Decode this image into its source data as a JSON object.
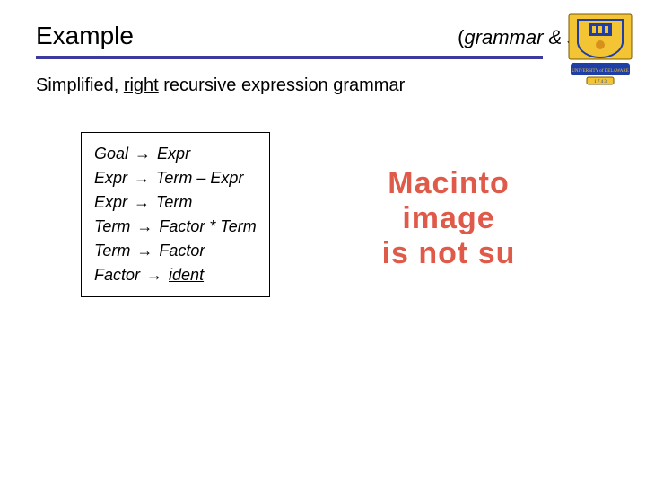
{
  "header": {
    "title": "Example",
    "right_label_inner": "grammar & sets"
  },
  "lead": {
    "pre": "Simplified, ",
    "underlined": "right",
    "post": " recursive expression grammar"
  },
  "grammar": {
    "rows": [
      {
        "lhs": "Goal",
        "rhs": "Expr",
        "op": ""
      },
      {
        "lhs": "Expr",
        "rhs": "Term – Expr",
        "op": ""
      },
      {
        "lhs": "Expr",
        "rhs": "Term",
        "op": ""
      },
      {
        "lhs": "Term",
        "rhs": "Factor * Term",
        "op": ""
      },
      {
        "lhs": "Term",
        "rhs": "Factor",
        "op": ""
      },
      {
        "lhs": "Factor",
        "rhs": "ident",
        "op": "",
        "rhs_underline": true
      }
    ],
    "arrow": "→"
  },
  "broken_image": {
    "lines": [
      "Macinto",
      "image",
      "is not su"
    ],
    "color": "#e05a4a"
  },
  "logo": {
    "name": "university-of-delaware-crest",
    "shield_bg": "#f3c433",
    "shield_blue": "#1f3fa6",
    "banner_bg": "#1f3fa6",
    "banner_text_color": "#f3c433"
  },
  "colors": {
    "rule": "#3b3b9e",
    "text": "#000000",
    "background": "#ffffff"
  }
}
